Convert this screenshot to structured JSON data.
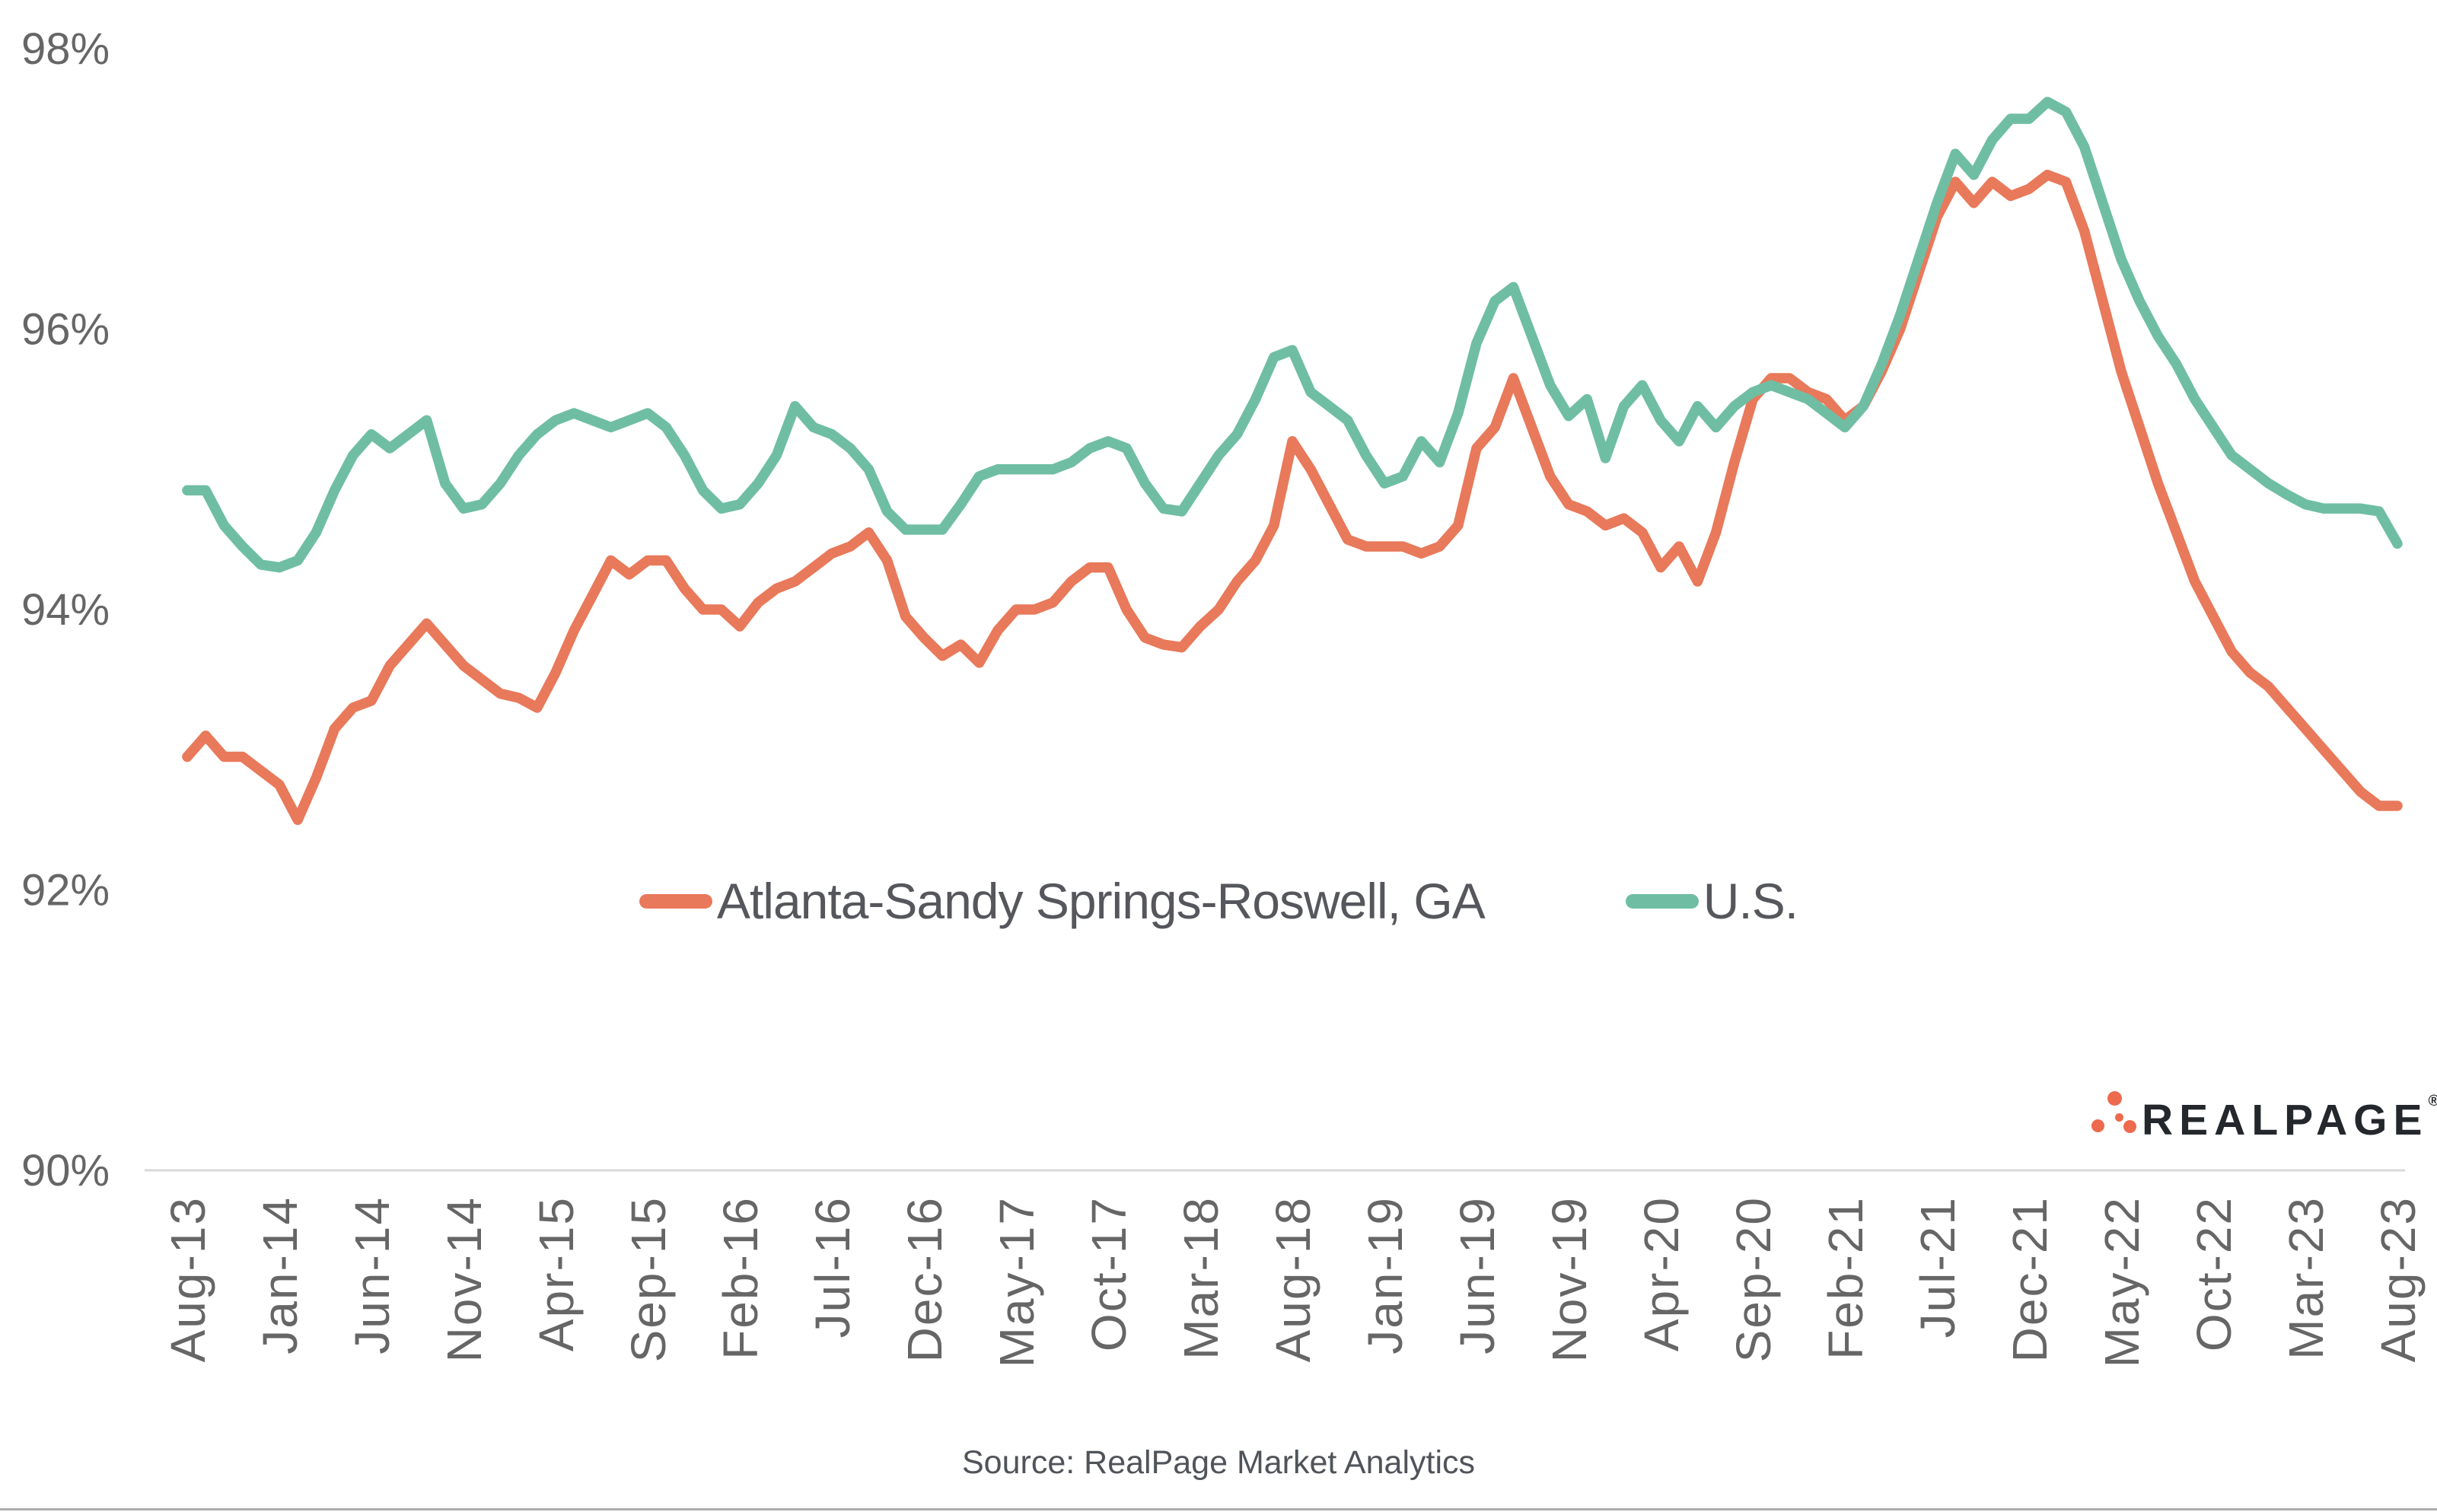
{
  "chart_data": {
    "type": "line",
    "title": "",
    "xlabel": "",
    "ylabel": "",
    "ylim": [
      90,
      98
    ],
    "grid": "off",
    "legend_position": "center-middle",
    "y_tick_labels": [
      "98%",
      "96%",
      "94%",
      "92%",
      "90%"
    ],
    "y_tick_values": [
      98,
      96,
      94,
      92,
      90
    ],
    "x_tick_labels": [
      "Aug-13",
      "Jan-14",
      "Jun-14",
      "Nov-14",
      "Apr-15",
      "Sep-15",
      "Feb-16",
      "Jul-16",
      "Dec-16",
      "May-17",
      "Oct-17",
      "Mar-18",
      "Aug-18",
      "Jan-19",
      "Jun-19",
      "Nov-19",
      "Apr-20",
      "Sep-20",
      "Feb-21",
      "Jul-21",
      "Dec-21",
      "May-22",
      "Oct-22",
      "Mar-23",
      "Aug-23"
    ],
    "x_tick_month_step": 5,
    "months_total": 121,
    "x_range_months": [
      "Aug-13",
      "Aug-23"
    ],
    "series": [
      {
        "name": "Atlanta-Sandy Springs-Roswell, GA",
        "color": "#E8795A",
        "values": [
          92.95,
          93.1,
          92.95,
          92.95,
          92.85,
          92.75,
          92.5,
          92.8,
          93.15,
          93.3,
          93.35,
          93.6,
          93.75,
          93.9,
          93.75,
          93.6,
          93.5,
          93.4,
          93.37,
          93.3,
          93.55,
          93.85,
          94.1,
          94.35,
          94.25,
          94.35,
          94.35,
          94.15,
          94.0,
          94.0,
          93.88,
          94.05,
          94.15,
          94.2,
          94.3,
          94.4,
          94.45,
          94.55,
          94.35,
          93.95,
          93.8,
          93.67,
          93.75,
          93.62,
          93.85,
          94.0,
          94.0,
          94.05,
          94.2,
          94.3,
          94.3,
          94.0,
          93.8,
          93.75,
          93.73,
          93.88,
          94.0,
          94.2,
          94.35,
          94.6,
          95.2,
          95.0,
          94.75,
          94.5,
          94.45,
          94.45,
          94.45,
          94.4,
          94.45,
          94.6,
          95.15,
          95.3,
          95.65,
          95.3,
          94.95,
          94.75,
          94.7,
          94.6,
          94.65,
          94.55,
          94.3,
          94.45,
          94.2,
          94.55,
          95.05,
          95.5,
          95.65,
          95.65,
          95.55,
          95.5,
          95.35,
          95.45,
          95.7,
          96.0,
          96.4,
          96.8,
          97.05,
          96.9,
          97.05,
          96.95,
          97.0,
          97.1,
          97.05,
          96.7,
          96.2,
          95.7,
          95.3,
          94.9,
          94.55,
          94.2,
          93.95,
          93.7,
          93.55,
          93.45,
          93.3,
          93.15,
          93.0,
          92.85,
          92.7,
          92.6,
          92.6
        ]
      },
      {
        "name": "U.S.",
        "color": "#6FBEA3",
        "values": [
          94.85,
          94.85,
          94.6,
          94.45,
          94.32,
          94.3,
          94.35,
          94.55,
          94.85,
          95.1,
          95.25,
          95.15,
          95.25,
          95.35,
          94.9,
          94.72,
          94.75,
          94.9,
          95.1,
          95.25,
          95.35,
          95.4,
          95.35,
          95.3,
          95.35,
          95.4,
          95.3,
          95.1,
          94.85,
          94.72,
          94.75,
          94.9,
          95.1,
          95.45,
          95.3,
          95.25,
          95.15,
          95.0,
          94.7,
          94.57,
          94.57,
          94.57,
          94.75,
          94.95,
          95.0,
          95.0,
          95.0,
          95.0,
          95.05,
          95.15,
          95.2,
          95.15,
          94.9,
          94.72,
          94.7,
          94.9,
          95.1,
          95.25,
          95.5,
          95.8,
          95.85,
          95.55,
          95.45,
          95.35,
          95.1,
          94.9,
          94.95,
          95.2,
          95.05,
          95.4,
          95.9,
          96.2,
          96.3,
          95.95,
          95.6,
          95.38,
          95.5,
          95.08,
          95.45,
          95.6,
          95.35,
          95.2,
          95.45,
          95.3,
          95.45,
          95.55,
          95.6,
          95.55,
          95.5,
          95.4,
          95.3,
          95.45,
          95.75,
          96.1,
          96.5,
          96.9,
          97.25,
          97.1,
          97.35,
          97.5,
          97.5,
          97.62,
          97.55,
          97.3,
          96.9,
          96.5,
          96.2,
          95.95,
          95.75,
          95.5,
          95.3,
          95.1,
          95.0,
          94.9,
          94.82,
          94.75,
          94.72,
          94.72,
          94.72,
          94.7,
          94.47
        ]
      }
    ]
  },
  "legend": {
    "items": [
      {
        "label": "Atlanta-Sandy Springs-Roswell, GA",
        "color": "#E8795A"
      },
      {
        "label": "U.S.",
        "color": "#6FBEA3"
      }
    ]
  },
  "source": {
    "text": "Source: RealPage Market Analytics"
  },
  "branding": {
    "logo_text": "REALPAGE",
    "registered_mark": "®",
    "dot_color": "#ED6A4E",
    "text_color": "#24272c"
  },
  "style": {
    "axis_line_color": "#d8d8d8",
    "tick_label_color": "#666666",
    "line_width": 13.5,
    "background": "#ffffff"
  }
}
